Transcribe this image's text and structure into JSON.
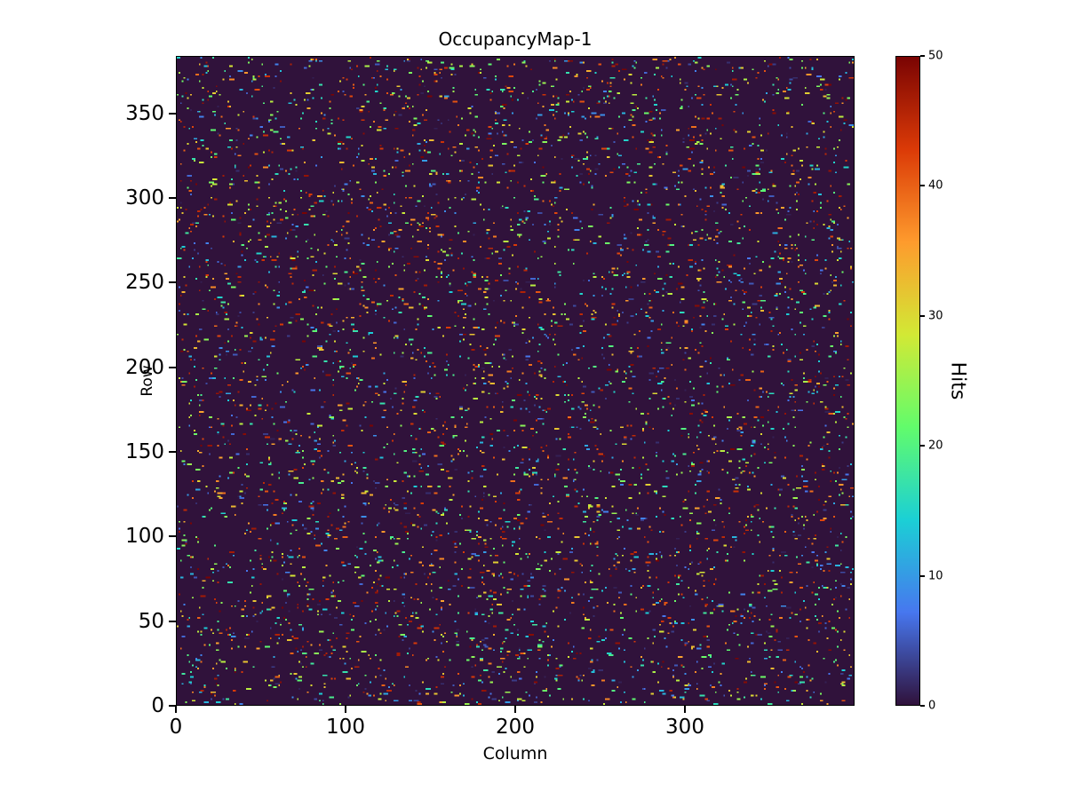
{
  "chart_data": {
    "type": "heatmap",
    "title": "OccupancyMap-1",
    "xlabel": "Column",
    "ylabel": "Row",
    "colorbar_label": "Hits",
    "x_tick_labels": [
      "0",
      "100",
      "200",
      "300"
    ],
    "x_tick_values": [
      0,
      100,
      200,
      300
    ],
    "y_tick_labels": [
      "0",
      "50",
      "100",
      "150",
      "200",
      "250",
      "300",
      "350"
    ],
    "y_tick_values": [
      0,
      50,
      100,
      150,
      200,
      250,
      300,
      350
    ],
    "colorbar_tick_labels": [
      "0",
      "10",
      "20",
      "30",
      "40",
      "50"
    ],
    "colorbar_tick_values": [
      0,
      10,
      20,
      30,
      40,
      50
    ],
    "x_range": [
      0,
      400
    ],
    "y_range": [
      0,
      384
    ],
    "value_range": [
      0,
      50
    ],
    "grid": {
      "cols": 400,
      "rows": 384
    },
    "colormap": "turbo",
    "colormap_stops": [
      "#30123b",
      "#4777ef",
      "#1bd0d5",
      "#62fc6b",
      "#d2e935",
      "#fe9b2d",
      "#db3a07",
      "#7a0403"
    ],
    "background_value_color": "#30123b",
    "grid_on": false,
    "legend": "colorbar-right",
    "generation": {
      "seed": 1337,
      "hit_probability": 0.035,
      "run_probability_2": 0.25,
      "run_probability_3": 0.08,
      "value_min": 1,
      "value_max": 50,
      "description": "Sparse random single-pixel and short horizontal dash hits with values approximately uniform between 1 and 50 over a dark zero-valued background"
    }
  }
}
